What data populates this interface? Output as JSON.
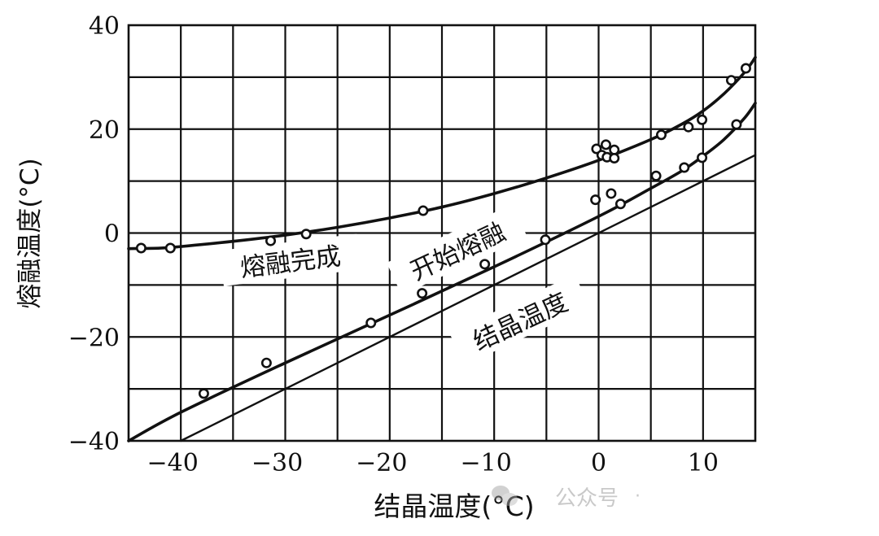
{
  "chart_data": {
    "type": "scatter",
    "title": "",
    "xlabel": "结晶温度(°C)",
    "ylabel": "熔融温度(°C)",
    "xlim": [
      -45,
      15
    ],
    "ylim": [
      -40,
      40
    ],
    "grid": true,
    "x_grid_step": 5,
    "y_grid_step": 10,
    "x_ticks": [
      -40,
      -30,
      -20,
      -10,
      0,
      10
    ],
    "x_tick_labels": [
      "−40",
      "−30",
      "−20",
      "−10",
      "0",
      "10"
    ],
    "y_ticks": [
      40,
      20,
      0,
      -20,
      -40
    ],
    "y_tick_labels": [
      "40",
      "20",
      "0",
      "−20",
      "−40"
    ],
    "legend": "inline curve labels",
    "series": [
      {
        "name": "熔融完成",
        "label": "熔融完成",
        "marker": "open-circle",
        "points": [
          [
            -43.8,
            -2.9
          ],
          [
            -41.0,
            -2.9
          ],
          [
            -31.4,
            -1.5
          ],
          [
            -28.0,
            -0.2
          ],
          [
            -16.8,
            4.3
          ],
          [
            -0.2,
            16.2
          ],
          [
            0.3,
            15.0
          ],
          [
            0.7,
            17.0
          ],
          [
            0.8,
            14.6
          ],
          [
            1.5,
            16.0
          ],
          [
            1.5,
            14.4
          ],
          [
            6.0,
            18.9
          ],
          [
            8.6,
            20.4
          ],
          [
            9.9,
            21.8
          ],
          [
            12.7,
            29.4
          ],
          [
            14.1,
            31.7
          ]
        ],
        "curve": [
          [
            -45,
            -3.0
          ],
          [
            -42,
            -2.9
          ],
          [
            -40,
            -2.6
          ],
          [
            -35,
            -1.6
          ],
          [
            -30,
            -0.4
          ],
          [
            -25,
            1.1
          ],
          [
            -20,
            2.9
          ],
          [
            -15,
            5.0
          ],
          [
            -10,
            7.6
          ],
          [
            -5,
            10.6
          ],
          [
            0,
            14.0
          ],
          [
            5,
            18.0
          ],
          [
            8,
            21.0
          ],
          [
            10,
            23.5
          ],
          [
            12,
            26.8
          ],
          [
            14,
            31.0
          ],
          [
            15,
            33.8
          ]
        ]
      },
      {
        "name": "开始熔融",
        "label": "开始熔融",
        "marker": "open-circle",
        "points": [
          [
            -37.8,
            -30.9
          ],
          [
            -31.8,
            -25.0
          ],
          [
            -21.8,
            -17.3
          ],
          [
            -16.9,
            -11.6
          ],
          [
            -10.9,
            -6.0
          ],
          [
            -5.1,
            -1.3
          ],
          [
            -0.3,
            6.4
          ],
          [
            1.2,
            7.6
          ],
          [
            2.1,
            5.6
          ],
          [
            5.5,
            11.0
          ],
          [
            8.2,
            12.6
          ],
          [
            9.9,
            14.5
          ],
          [
            13.2,
            20.9
          ]
        ],
        "curve": [
          [
            -45,
            -40.0
          ],
          [
            -40,
            -34.5
          ],
          [
            -30,
            -25.0
          ],
          [
            -20,
            -15.8
          ],
          [
            -10,
            -6.5
          ],
          [
            0,
            3.2
          ],
          [
            5,
            8.6
          ],
          [
            8,
            12.0
          ],
          [
            10,
            14.8
          ],
          [
            12,
            18.0
          ],
          [
            14,
            22.2
          ],
          [
            15,
            25.0
          ]
        ]
      },
      {
        "name": "结晶温度",
        "label": "结晶温度",
        "marker": "none",
        "curve": [
          [
            -40,
            -40
          ],
          [
            15,
            15
          ]
        ]
      }
    ],
    "annotations": [
      {
        "text": "熔融完成",
        "x": -29.5,
        "y": -5.5,
        "rotation": -7
      },
      {
        "text": "开始熔融",
        "x": -13.5,
        "y": -3.5,
        "rotation": -25
      },
      {
        "text": "结晶温度",
        "x": -7.5,
        "y": -17.0,
        "rotation": -25
      }
    ]
  },
  "watermark": {
    "icon": "wechat-icon",
    "text": "公众号",
    "suffix": "·"
  }
}
